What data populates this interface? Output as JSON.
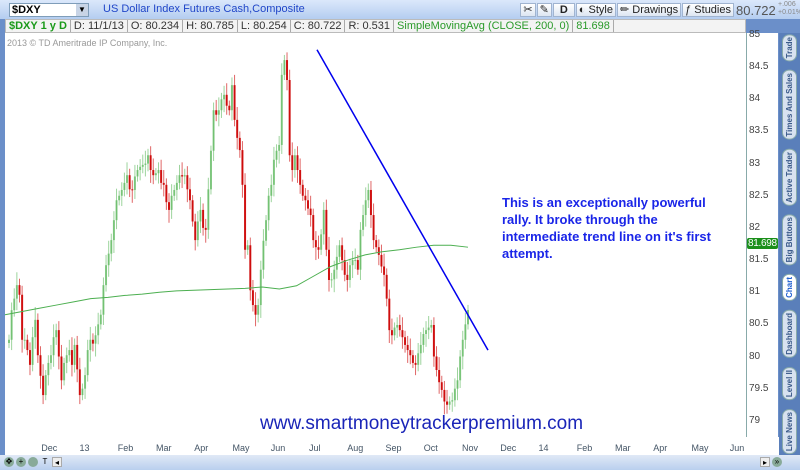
{
  "header": {
    "symbol": "$DXY",
    "description": "US Dollar Index Futures Cash,Composite",
    "last": "80.722",
    "change": "+.006",
    "change_pct": "+0.01%",
    "tools": {
      "style": "Style",
      "drawings": "Drawings",
      "studies": "Studies",
      "period": "D"
    }
  },
  "infobar": {
    "label": "$DXY 1 y D",
    "date": "D: 11/1/13",
    "open": "O: 80.234",
    "high": "H: 80.785",
    "low": "L: 80.254",
    "close": "C: 80.722",
    "range": "R: 0.531",
    "study": "SimpleMovingAvg (CLOSE, 200, 0)",
    "study_value": "81.698"
  },
  "copyright": "2013 © TD Ameritrade IP Company, Inc.",
  "side_tabs": [
    "Trade",
    "Times And Sales",
    "Active Trader",
    "Big Buttons",
    "Chart",
    "Dashboard",
    "Level II",
    "Live News"
  ],
  "active_tab": "Chart",
  "annotation": "This is an exceptionally powerful rally. It broke through the intermediate trend line on it's first attempt.",
  "watermark": "www.smartmoneytrackerpremium.com",
  "colors": {
    "up": "#5cb85c",
    "down": "#cc0000",
    "sma": "#4caf50",
    "trendline": "#0000ee",
    "annotation": "#1a25e8"
  },
  "chart_data": {
    "type": "candlestick",
    "ylim": [
      78.8,
      85
    ],
    "y_ticks": [
      "85",
      "84.5",
      "84",
      "83.5",
      "83",
      "82.5",
      "82",
      "81.5",
      "81",
      "80.5",
      "80",
      "79.5",
      "79"
    ],
    "x_ticks": [
      "Dec",
      "13",
      "Feb",
      "Mar",
      "Apr",
      "May",
      "Jun",
      "Jul",
      "Aug",
      "Sep",
      "Oct",
      "Nov",
      "Dec",
      "14",
      "Feb",
      "Mar",
      "Apr",
      "May",
      "Jun"
    ],
    "x_range": [
      "2012-11",
      "2014-06"
    ],
    "last_bar_date": "11/1/13",
    "closes": [
      80.26,
      80.72,
      80.9,
      81.11,
      80.96,
      80.26,
      80.26,
      80.1,
      79.87,
      80.3,
      80.57,
      80.02,
      79.7,
      79.4,
      79.71,
      79.9,
      80.02,
      80.3,
      80.41,
      80.0,
      79.63,
      79.9,
      80.02,
      80.1,
      79.87,
      80.18,
      79.8,
      79.4,
      79.5,
      79.71,
      80.1,
      80.26,
      80.2,
      80.33,
      80.5,
      80.65,
      81.11,
      81.42,
      81.6,
      81.81,
      82.12,
      82.43,
      82.5,
      82.59,
      82.7,
      82.82,
      82.6,
      82.59,
      82.8,
      82.9,
      82.95,
      82.98,
      83.0,
      83.13,
      82.9,
      82.82,
      82.85,
      82.9,
      82.7,
      82.67,
      82.4,
      82.28,
      82.5,
      82.59,
      82.7,
      82.82,
      82.8,
      82.82,
      82.6,
      82.43,
      82.1,
      81.81,
      82.1,
      82.28,
      82.0,
      81.97,
      82.6,
      83.2,
      83.83,
      83.76,
      83.83,
      84.0,
      84.07,
      83.9,
      83.83,
      84.22,
      83.68,
      83.4,
      83.21,
      82.67,
      81.66,
      81.73,
      81.03,
      80.8,
      80.65,
      80.8,
      81.35,
      81.8,
      82.12,
      82.5,
      82.67,
      83.06,
      83.2,
      83.29,
      84.38,
      84.61,
      84.3,
      83.13,
      82.9,
      83.13,
      82.9,
      82.67,
      82.5,
      82.43,
      82.3,
      82.2,
      81.81,
      81.7,
      81.66,
      81.9,
      82.28,
      81.66,
      81.19,
      81.2,
      81.35,
      81.55,
      81.73,
      81.5,
      81.27,
      81.19,
      81.42,
      81.5,
      81.5,
      81.35,
      81.97,
      82.2,
      82.43,
      82.59,
      82.2,
      81.81,
      81.7,
      81.58,
      81.4,
      81.27,
      80.9,
      80.41,
      80.33,
      80.45,
      80.49,
      80.41,
      80.3,
      80.18,
      80.1,
      80.02,
      79.9,
      79.87,
      80.05,
      80.18,
      80.35,
      80.41,
      80.45,
      80.49,
      80.0,
      79.79,
      79.6,
      79.48,
      79.3,
      79.25,
      79.3,
      79.32,
      79.5,
      79.63,
      80.0,
      80.26,
      80.5,
      80.722
    ],
    "sma_200": [
      80.65,
      80.7,
      80.75,
      80.8,
      80.85,
      80.9,
      80.92,
      80.95,
      80.97,
      81.0,
      81.02,
      81.03,
      81.04,
      81.05,
      81.06,
      81.08,
      81.05,
      81.1,
      81.25,
      81.4,
      81.5,
      81.58,
      81.63,
      81.66,
      81.7,
      81.73,
      81.73,
      81.7
    ],
    "trendline": {
      "from": {
        "date": "2013-07",
        "price": 84.77
      },
      "to": {
        "date": "2013-11",
        "price": 80.1
      }
    }
  }
}
